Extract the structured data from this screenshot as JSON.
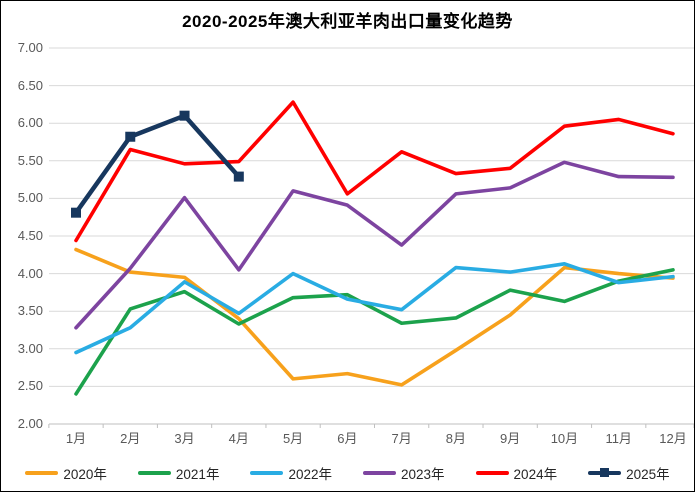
{
  "window": {
    "background": "#FFFFFF",
    "border_color": "#000000"
  },
  "chart_data": {
    "type": "line",
    "title": "2020-2025年澳大利亚羊肉出口量变化趋势",
    "xlabel": "",
    "ylabel": "",
    "ylim": [
      2.0,
      7.0
    ],
    "y_tick_step": 0.5,
    "y_ticks": [
      "7.00",
      "6.50",
      "6.00",
      "5.50",
      "5.00",
      "4.50",
      "4.00",
      "3.50",
      "3.00",
      "2.50",
      "2.00"
    ],
    "categories": [
      "1月",
      "2月",
      "3月",
      "4月",
      "5月",
      "6月",
      "7月",
      "8月",
      "9月",
      "10月",
      "11月",
      "12月"
    ],
    "grid": true,
    "legend_position": "bottom",
    "series": [
      {
        "name": "2020年",
        "color": "#F7A11C",
        "marker": "none",
        "values": [
          4.32,
          4.02,
          3.95,
          3.4,
          2.6,
          2.67,
          2.52,
          2.98,
          3.45,
          4.08,
          4.0,
          3.94
        ]
      },
      {
        "name": "2021年",
        "color": "#1CA24C",
        "marker": "none",
        "values": [
          2.4,
          3.53,
          3.76,
          3.33,
          3.68,
          3.72,
          3.34,
          3.41,
          3.78,
          3.63,
          3.9,
          4.05
        ]
      },
      {
        "name": "2022年",
        "color": "#29ACE3",
        "marker": "none",
        "values": [
          2.95,
          3.28,
          3.89,
          3.47,
          4.0,
          3.66,
          3.52,
          4.08,
          4.02,
          4.13,
          3.88,
          3.96
        ]
      },
      {
        "name": "2023年",
        "color": "#7D44A0",
        "marker": "none",
        "values": [
          3.28,
          4.07,
          5.01,
          4.05,
          5.1,
          4.91,
          4.38,
          5.06,
          5.14,
          5.48,
          5.29,
          5.28
        ]
      },
      {
        "name": "2024年",
        "color": "#FF0000",
        "marker": "none",
        "values": [
          4.44,
          5.65,
          5.46,
          5.49,
          6.28,
          5.06,
          5.62,
          5.33,
          5.4,
          5.96,
          6.05,
          5.86
        ]
      },
      {
        "name": "2025年",
        "color": "#17375E",
        "marker": "square",
        "values": [
          4.81,
          5.82,
          6.1,
          5.29
        ]
      }
    ],
    "colors": {
      "gridline": "#D9D9D9",
      "axis": "#BFBFBF",
      "tick_label": "#595959",
      "title": "#000000",
      "legend_text": "#262626"
    }
  }
}
